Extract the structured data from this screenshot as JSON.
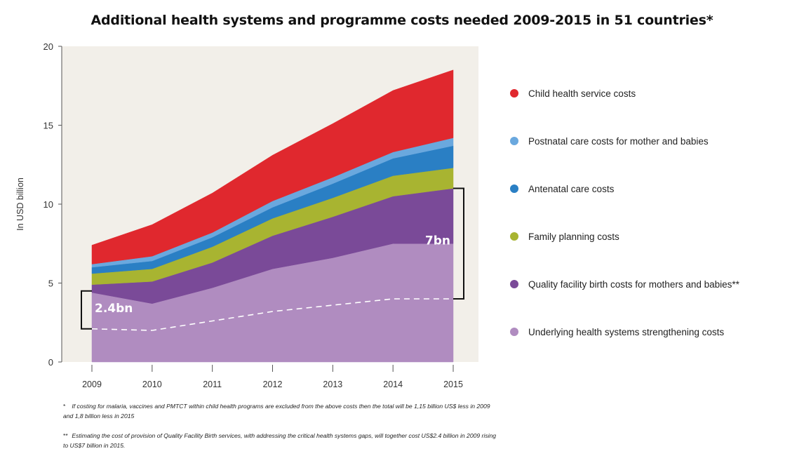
{
  "chart_data": {
    "type": "area",
    "stacked": true,
    "title": "Additional health systems and programme costs needed 2009-2015 in 51 countries*",
    "ylabel": "In USD billion",
    "xlabel": "",
    "x": [
      "2009",
      "2010",
      "2011",
      "2012",
      "2013",
      "2014",
      "2015"
    ],
    "ylim": [
      0,
      20
    ],
    "yticks": [
      "0",
      "5",
      "10",
      "15",
      "20"
    ],
    "grid": false,
    "legend_position": "right",
    "series": [
      {
        "name": "Underlying health systems strengthening costs",
        "color": "#b08cc0",
        "values": [
          4.4,
          3.7,
          4.7,
          5.9,
          6.6,
          7.5,
          7.5
        ]
      },
      {
        "name": "Quality facility birth costs for mothers and babies**",
        "color": "#7a4a98",
        "values": [
          0.5,
          1.4,
          1.6,
          2.1,
          2.6,
          3.0,
          3.5
        ]
      },
      {
        "name": "Family planning costs",
        "color": "#a8b431",
        "values": [
          0.7,
          0.8,
          1.0,
          1.1,
          1.2,
          1.3,
          1.3
        ]
      },
      {
        "name": "Antenatal care costs",
        "color": "#2a7fc4",
        "values": [
          0.4,
          0.5,
          0.6,
          0.7,
          0.9,
          1.1,
          1.4
        ]
      },
      {
        "name": "Postnatal care costs for mother and babies",
        "color": "#6aa8de",
        "values": [
          0.2,
          0.3,
          0.3,
          0.4,
          0.4,
          0.4,
          0.5
        ]
      },
      {
        "name": "Child health service costs",
        "color": "#e0282e",
        "values": [
          1.2,
          2.0,
          2.5,
          2.9,
          3.4,
          3.9,
          4.3
        ]
      }
    ],
    "dashed_line": {
      "values": [
        2.1,
        2.0,
        2.6,
        3.2,
        3.6,
        4.0,
        4.0
      ]
    },
    "annotations": [
      {
        "text": "2.4bn",
        "x": "2009",
        "y_range": [
          2.1,
          4.5
        ]
      },
      {
        "text": "7bn",
        "x": "2015",
        "y_range": [
          4.0,
          11.0
        ]
      }
    ],
    "background_color": "#f2efe9"
  },
  "legend": {
    "items": [
      {
        "label": "Child health service costs",
        "color": "#e0282e"
      },
      {
        "label": "Postnatal care costs for mother and babies",
        "color": "#6aa8de"
      },
      {
        "label": "Antenatal care costs",
        "color": "#2a7fc4"
      },
      {
        "label": "Family planning costs",
        "color": "#a8b431"
      },
      {
        "label": "Quality facility birth costs for mothers and babies**",
        "color": "#7a4a98"
      },
      {
        "label": "Underlying health systems strengthening costs",
        "color": "#b08cc0"
      }
    ]
  },
  "footnotes": [
    {
      "mark": "*",
      "text": "If costing for malaria, vaccines and PMTCT within child health programs are excluded from the above costs then the total will be 1,15 billion US$ less in 2009 and 1,8 billion less in 2015"
    },
    {
      "mark": "**",
      "text": "Estimating the cost of provision of Quality Facility Birth services, with addressing the critical health systems gaps, will together cost US$2.4 billion in 2009 rising to US$7 billion in 2015."
    }
  ]
}
